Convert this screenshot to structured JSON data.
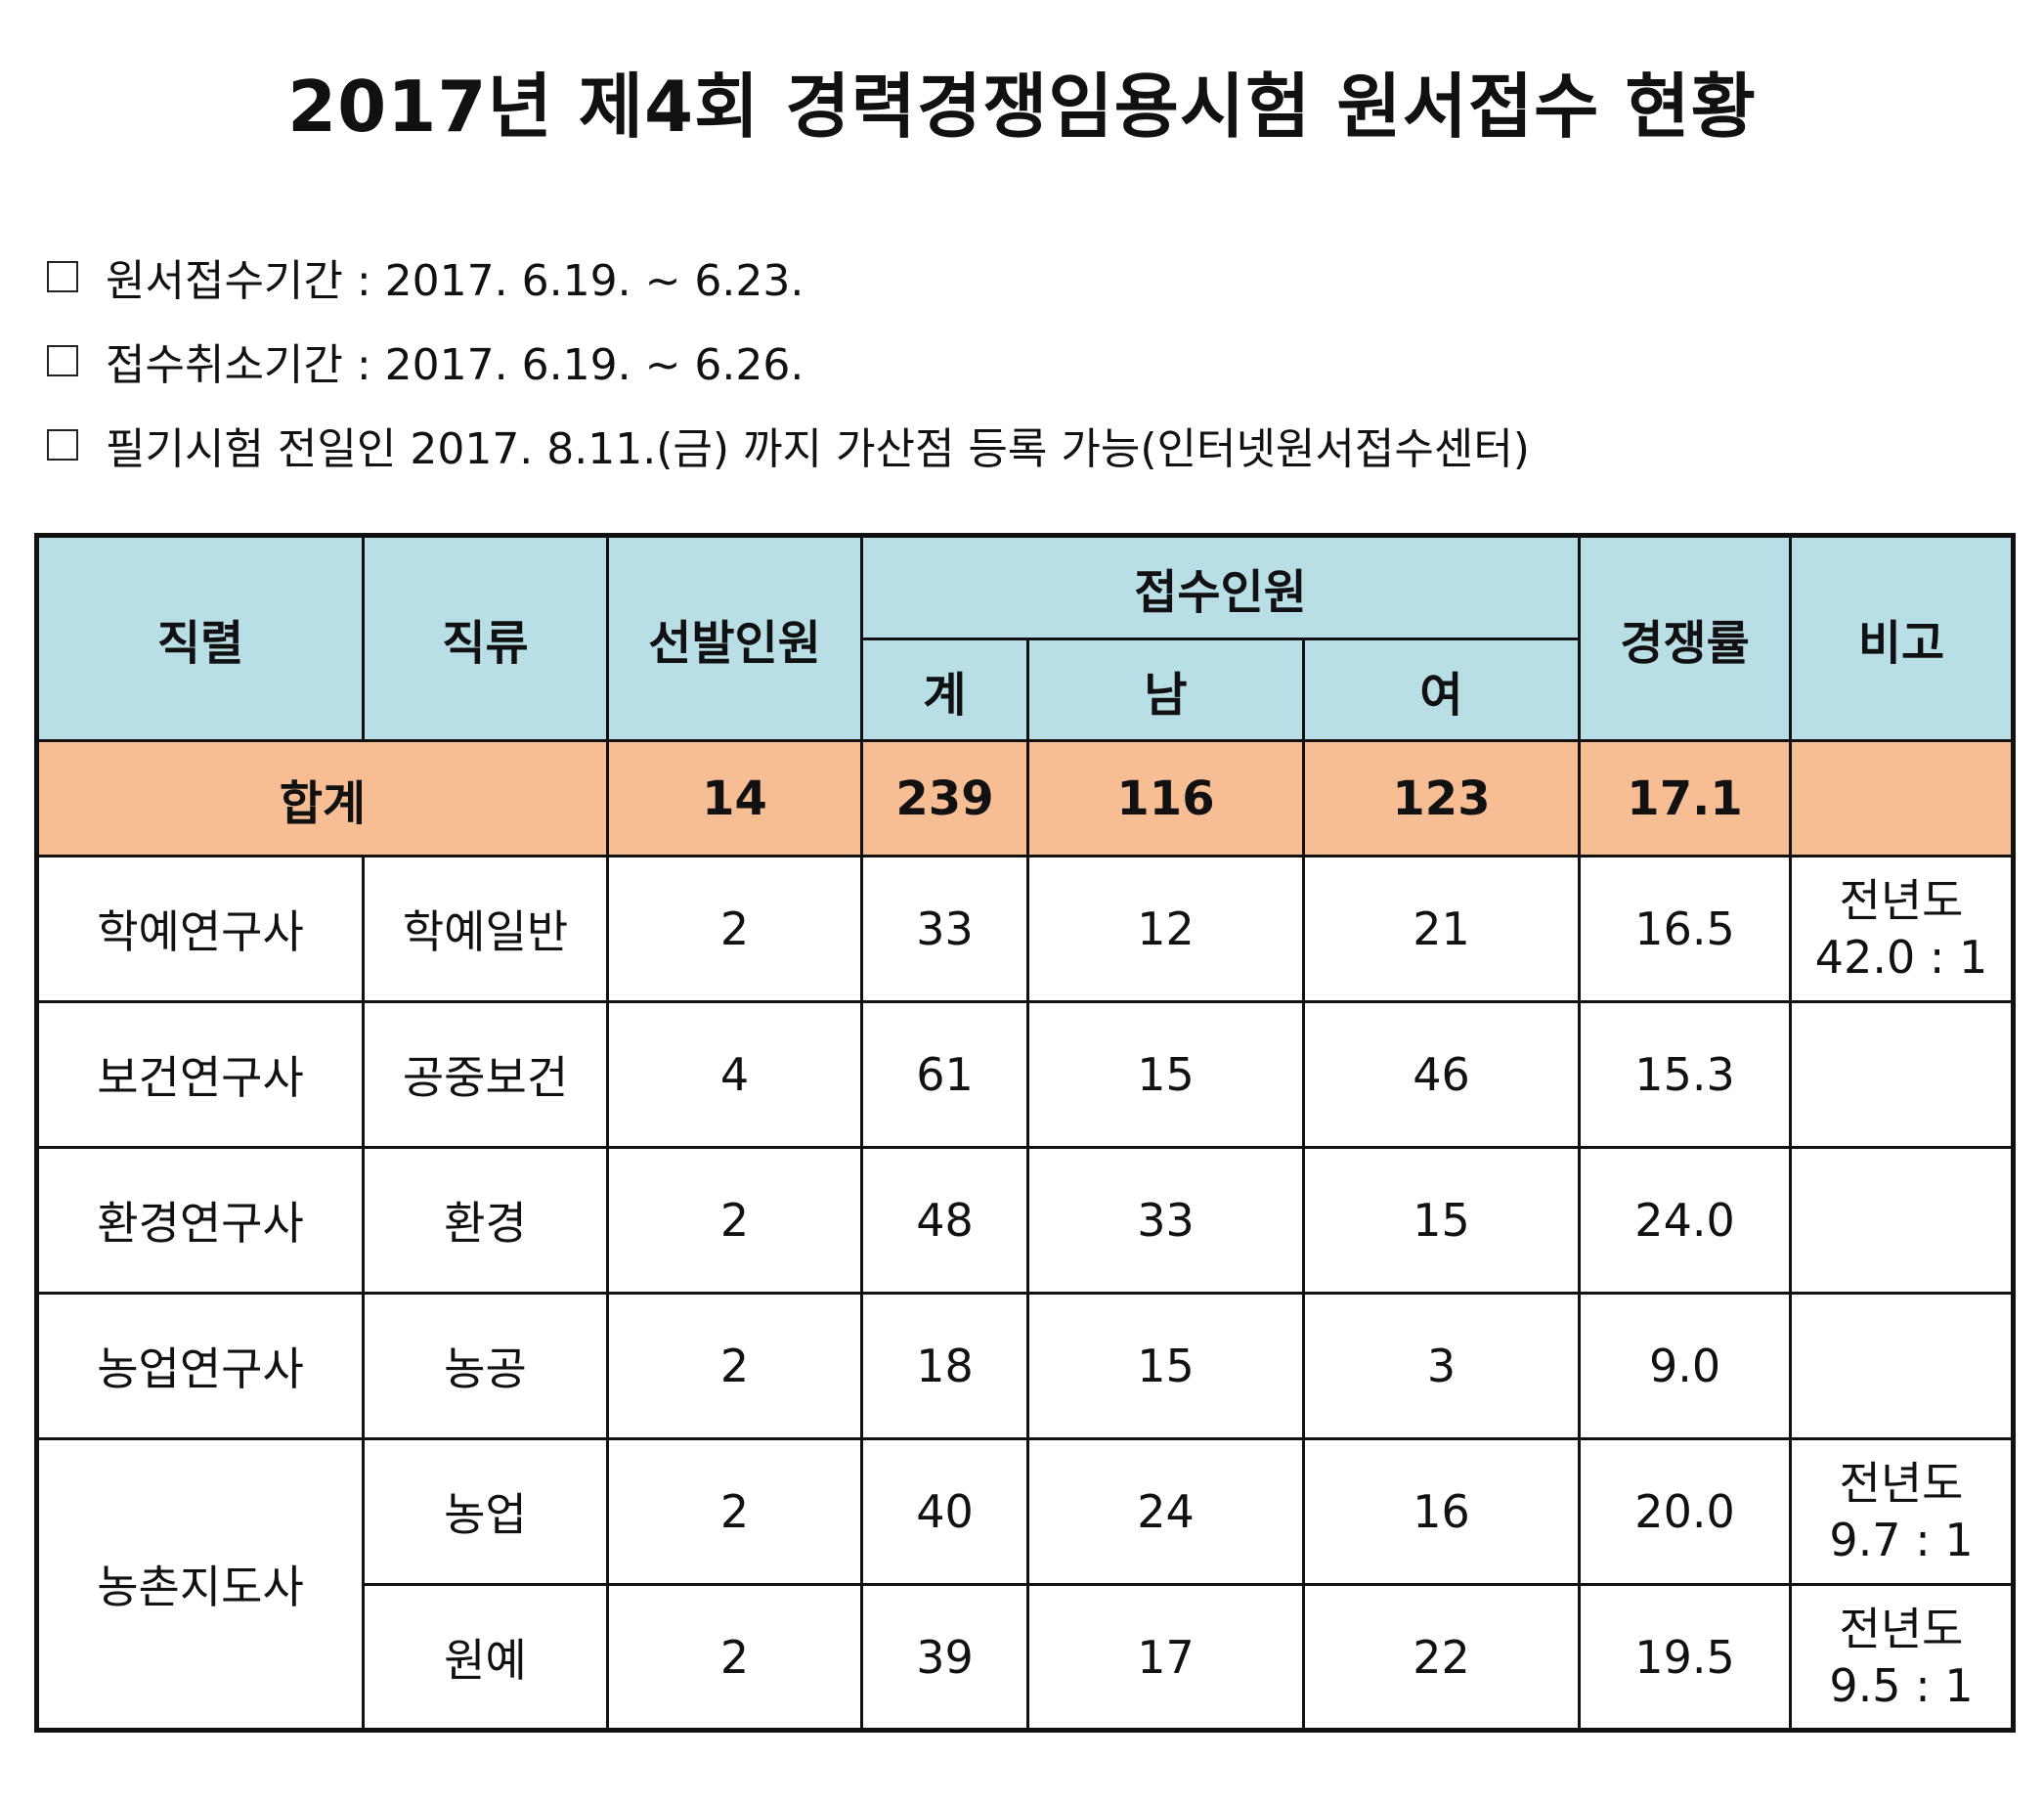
{
  "title": "2017년 제4회 경력경쟁임용시험 원서접수 현황",
  "notes": [
    {
      "marker": "□",
      "text": "원서접수기간 : 2017. 6.19. ~ 6.23."
    },
    {
      "marker": "□",
      "text": "접수취소기간 : 2017. 6.19. ~ 6.26."
    },
    {
      "marker": "□",
      "text": "필기시험 전일인 2017. 8.11.(금) 까지 가산점 등록 가능(인터넷원서접수센터)"
    }
  ],
  "table": {
    "headers": {
      "series": "직렬",
      "job": "직류",
      "selected": "선발인원",
      "applicants": "접수인원",
      "total": "계",
      "male": "남",
      "female": "여",
      "ratio": "경쟁률",
      "remark": "비고"
    },
    "total_row": {
      "label": "합계",
      "selected": "14",
      "total": "239",
      "male": "116",
      "female": "123",
      "ratio": "17.1"
    },
    "rows": [
      {
        "series": "학예연구사",
        "job": "학예일반",
        "selected": "2",
        "total": "33",
        "male": "12",
        "female": "21",
        "ratio": "16.5",
        "remark1": "전년도",
        "remark2": "42.0 : 1"
      },
      {
        "series": "보건연구사",
        "job": "공중보건",
        "selected": "4",
        "total": "61",
        "male": "15",
        "female": "46",
        "ratio": "15.3",
        "remark1": "",
        "remark2": ""
      },
      {
        "series": "환경연구사",
        "job": "환경",
        "selected": "2",
        "total": "48",
        "male": "33",
        "female": "15",
        "ratio": "24.0",
        "remark1": "",
        "remark2": ""
      },
      {
        "series": "농업연구사",
        "job": "농공",
        "selected": "2",
        "total": "18",
        "male": "15",
        "female": "3",
        "ratio": "9.0",
        "remark1": "",
        "remark2": ""
      },
      {
        "series": "농촌지도사",
        "job": "농업",
        "selected": "2",
        "total": "40",
        "male": "24",
        "female": "16",
        "ratio": "20.0",
        "remark1": "전년도",
        "remark2": "9.7 : 1"
      },
      {
        "series": "",
        "job": "원예",
        "selected": "2",
        "total": "39",
        "male": "17",
        "female": "22",
        "ratio": "19.5",
        "remark1": "전년도",
        "remark2": "9.5 : 1"
      }
    ]
  }
}
